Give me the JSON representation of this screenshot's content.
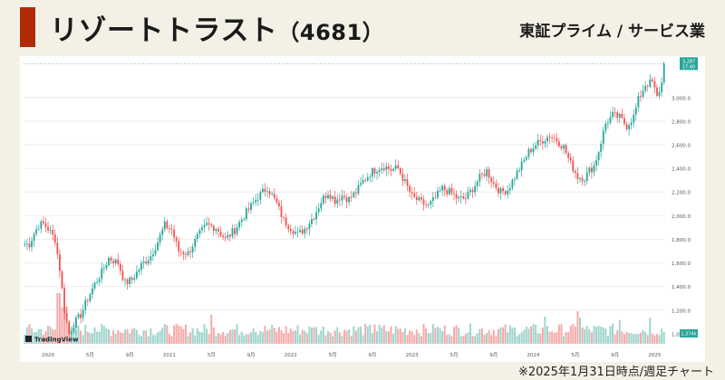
{
  "header": {
    "company": "リゾートトラスト",
    "code": "（4681）",
    "market": "東証プライム / サービス業"
  },
  "footnote": "※2025年1月31日時点/週足チャート",
  "colors": {
    "up": "#26a69a",
    "down": "#ef5350",
    "up_volume": "#9ed4cd",
    "down_volume": "#f5a9a7",
    "accent": "#b22a08",
    "background": "#f3f1e6"
  },
  "chart_data": {
    "type": "candlestick",
    "title": "リゾートトラスト（4681）",
    "interval": "weekly",
    "watermark": "TradingView",
    "ylim": [
      900,
      3320
    ],
    "y_ticks": [
      1000,
      1200,
      1400,
      1600,
      1800,
      2000,
      2200,
      2400,
      2600,
      2800,
      3000
    ],
    "y_tick_labels": [
      "1,000.0",
      "1,200.0",
      "1,400.0",
      "1,600.0",
      "1,800.0",
      "2,000.0",
      "2,200.0",
      "2,400.0",
      "2,600.0",
      "2,800.0",
      "3,000.0"
    ],
    "x_ticks": [
      {
        "label": "2020",
        "week": 10
      },
      {
        "label": "5月",
        "week": 28
      },
      {
        "label": "9月",
        "week": 45
      },
      {
        "label": "2021",
        "week": 62
      },
      {
        "label": "5月",
        "week": 80
      },
      {
        "label": "9月",
        "week": 97
      },
      {
        "label": "2022",
        "week": 114
      },
      {
        "label": "5月",
        "week": 132
      },
      {
        "label": "9月",
        "week": 149
      },
      {
        "label": "2023",
        "week": 166
      },
      {
        "label": "5月",
        "week": 184
      },
      {
        "label": "9月",
        "week": 201
      },
      {
        "label": "2024",
        "week": 218
      },
      {
        "label": "5月",
        "week": 236
      },
      {
        "label": "9月",
        "week": 253
      },
      {
        "label": "2025",
        "week": 270
      }
    ],
    "last_price": "3,287",
    "last_time": "17:40",
    "volume_label": "1,374k",
    "anchors": [
      [
        0,
        1760
      ],
      [
        2,
        1760
      ],
      [
        4,
        1850
      ],
      [
        6,
        1920
      ],
      [
        8,
        1930
      ],
      [
        10,
        1890
      ],
      [
        13,
        1800
      ],
      [
        15,
        1550
      ],
      [
        17,
        1200
      ],
      [
        19,
        1000
      ],
      [
        21,
        1080
      ],
      [
        24,
        1160
      ],
      [
        27,
        1300
      ],
      [
        30,
        1420
      ],
      [
        33,
        1520
      ],
      [
        36,
        1640
      ],
      [
        40,
        1600
      ],
      [
        43,
        1430
      ],
      [
        46,
        1460
      ],
      [
        50,
        1580
      ],
      [
        54,
        1660
      ],
      [
        57,
        1780
      ],
      [
        60,
        1920
      ],
      [
        63,
        1880
      ],
      [
        66,
        1700
      ],
      [
        70,
        1680
      ],
      [
        74,
        1820
      ],
      [
        78,
        1920
      ],
      [
        82,
        1900
      ],
      [
        86,
        1800
      ],
      [
        90,
        1880
      ],
      [
        94,
        2000
      ],
      [
        97,
        2080
      ],
      [
        100,
        2160
      ],
      [
        104,
        2240
      ],
      [
        108,
        2100
      ],
      [
        111,
        1960
      ],
      [
        114,
        1900
      ],
      [
        117,
        1840
      ],
      [
        120,
        1890
      ],
      [
        124,
        2000
      ],
      [
        127,
        2120
      ],
      [
        130,
        2200
      ],
      [
        133,
        2130
      ],
      [
        136,
        2170
      ],
      [
        139,
        2140
      ],
      [
        142,
        2200
      ],
      [
        145,
        2290
      ],
      [
        148,
        2360
      ],
      [
        151,
        2400
      ],
      [
        154,
        2420
      ],
      [
        157,
        2390
      ],
      [
        160,
        2400
      ],
      [
        163,
        2280
      ],
      [
        166,
        2160
      ],
      [
        170,
        2110
      ],
      [
        173,
        2080
      ],
      [
        176,
        2150
      ],
      [
        179,
        2230
      ],
      [
        182,
        2200
      ],
      [
        186,
        2140
      ],
      [
        189,
        2150
      ],
      [
        192,
        2230
      ],
      [
        195,
        2320
      ],
      [
        198,
        2380
      ],
      [
        201,
        2270
      ],
      [
        204,
        2200
      ],
      [
        207,
        2220
      ],
      [
        210,
        2330
      ],
      [
        213,
        2430
      ],
      [
        216,
        2540
      ],
      [
        219,
        2600
      ],
      [
        222,
        2640
      ],
      [
        225,
        2680
      ],
      [
        228,
        2640
      ],
      [
        231,
        2580
      ],
      [
        234,
        2440
      ],
      [
        237,
        2330
      ],
      [
        240,
        2320
      ],
      [
        242,
        2380
      ],
      [
        244,
        2420
      ],
      [
        246,
        2550
      ],
      [
        249,
        2780
      ],
      [
        252,
        2850
      ],
      [
        255,
        2830
      ],
      [
        258,
        2760
      ],
      [
        261,
        2840
      ],
      [
        263,
        2980
      ],
      [
        266,
        3110
      ],
      [
        269,
        3130
      ],
      [
        271,
        3000
      ],
      [
        273,
        3120
      ],
      [
        274,
        3287
      ]
    ],
    "volume_spikes": [
      {
        "week": 14,
        "scale": 3.8
      },
      {
        "week": 15,
        "scale": 4.6
      },
      {
        "week": 16,
        "scale": 4.2
      },
      {
        "week": 17,
        "scale": 3.6
      },
      {
        "week": 18,
        "scale": 3.0
      },
      {
        "week": 30,
        "scale": 2.0
      },
      {
        "week": 80,
        "scale": 1.8
      },
      {
        "week": 98,
        "scale": 1.7
      },
      {
        "week": 124,
        "scale": 1.6
      },
      {
        "week": 150,
        "scale": 1.7
      },
      {
        "week": 176,
        "scale": 1.5
      },
      {
        "week": 223,
        "scale": 2.4
      },
      {
        "week": 237,
        "scale": 3.2
      },
      {
        "week": 238,
        "scale": 2.2
      },
      {
        "week": 255,
        "scale": 1.8
      },
      {
        "week": 268,
        "scale": 1.6
      }
    ]
  }
}
